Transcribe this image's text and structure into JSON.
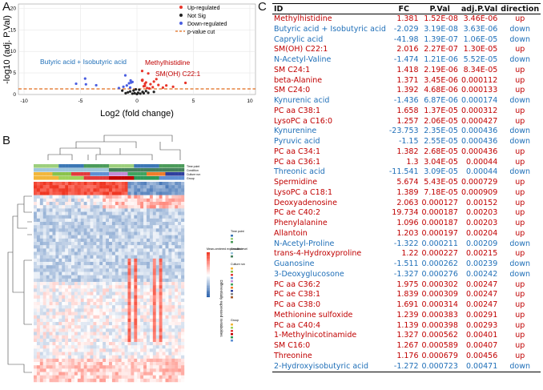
{
  "panels": {
    "a": "A",
    "b": "B",
    "c": "C"
  },
  "volcano": {
    "ylabel": "-log10 (adj. P.Val)",
    "xlabel": "Log2 (fold change)",
    "xticks": [
      "-10",
      "-5",
      "0",
      "5",
      "10"
    ],
    "yticks": [
      "0",
      "5",
      "10",
      "15",
      "20"
    ],
    "legend": {
      "up": "Up-regulated",
      "notsig": "Not Sig",
      "down": "Down-regulated",
      "cut": "p-value cut"
    },
    "annotations": {
      "butyric": "Butyric acid + Isobutyric acid",
      "methyl": "Methylhistidine",
      "smoh": "SM(OH) C22:1"
    },
    "colors": {
      "up": "#e8352a",
      "down": "#4a5ee0",
      "notsig": "#222222",
      "cut": "#e06a1a"
    }
  },
  "chart_data": {
    "type": "scatter",
    "title": "",
    "xlabel": "Log2 (fold change)",
    "ylabel": "-log10 (adj. P.Val)",
    "xlim": [
      -10.5,
      10.5
    ],
    "ylim": [
      0,
      21
    ],
    "threshold": 1.3,
    "series": [
      {
        "name": "Up-regulated",
        "points": [
          [
            0.46,
            5.46
          ],
          [
            1.0,
            4.89
          ],
          [
            1.72,
            3.57
          ],
          [
            0.49,
            3.39
          ],
          [
            0.45,
            3.32
          ],
          [
            0.48,
            3.2
          ],
          [
            0.71,
            2.5
          ],
          [
            1.9,
            2.2
          ],
          [
            1.5,
            3.0
          ],
          [
            0.8,
            2.8
          ],
          [
            1.2,
            2.4
          ],
          [
            0.6,
            1.9
          ],
          [
            1.4,
            1.7
          ],
          [
            2.3,
            1.6
          ],
          [
            0.9,
            1.5
          ],
          [
            3.2,
            1.8
          ],
          [
            4.3,
            2.7
          ],
          [
            0.7,
            2.0
          ],
          [
            1.1,
            1.4
          ],
          [
            2.6,
            2.1
          ]
        ]
      },
      {
        "name": "Not Sig",
        "points": [
          [
            -0.3,
            0.9
          ],
          [
            0.2,
            1.1
          ],
          [
            -0.6,
            0.7
          ],
          [
            0.5,
            0.6
          ],
          [
            0.1,
            0.4
          ],
          [
            -0.2,
            0.3
          ],
          [
            0.3,
            0.2
          ],
          [
            -0.8,
            0.5
          ],
          [
            0.8,
            0.8
          ],
          [
            -0.1,
            1.2
          ],
          [
            0.6,
            0.3
          ],
          [
            -0.4,
            0.2
          ],
          [
            0.0,
            0.1
          ],
          [
            1.0,
            0.4
          ],
          [
            -1.0,
            0.3
          ],
          [
            -1.3,
            0.9
          ],
          [
            1.5,
            0.6
          ]
        ]
      },
      {
        "name": "Down-regulated",
        "points": [
          [
            -1.03,
            4.44
          ],
          [
            -4.59,
            3.69
          ],
          [
            -5.39,
            2.5
          ],
          [
            -0.56,
            3.26
          ],
          [
            -0.52,
            2.76
          ],
          [
            -4.52,
            2.36
          ],
          [
            -3.61,
            2.15
          ],
          [
            -0.4,
            2.9
          ],
          [
            -0.7,
            2.6
          ],
          [
            -0.9,
            2.1
          ],
          [
            -1.2,
            1.8
          ],
          [
            -0.6,
            1.6
          ],
          [
            -1.6,
            1.5
          ]
        ]
      }
    ]
  },
  "heatmap": {
    "legend_title_1": "Mean-centered expression level",
    "legend_title_2": "Time point",
    "legend_title_3": "Condition",
    "legend_title_4": "Culture run",
    "legend_title_5": "Group",
    "row_label": "Differentially expressed metabolites",
    "annotation_labels": [
      "Time point",
      "Condition",
      "Culture run",
      "Group"
    ]
  },
  "table": {
    "headers": {
      "id": "ID",
      "fc": "FC",
      "pval": "P.Val",
      "adj": "adj.P.Val",
      "dir": "direction"
    },
    "rows": [
      {
        "id": "Methylhistidine",
        "fc": "1.381",
        "p": "1.52E-08",
        "adj": "3.46E-06",
        "dir": "up"
      },
      {
        "id": "Butyric acid + Isobutyric acid",
        "fc": "-2.029",
        "p": "3.19E-08",
        "adj": "3.63E-06",
        "dir": "down"
      },
      {
        "id": "Caprylic acid",
        "fc": "-41.98",
        "p": "1.39E-07",
        "adj": "1.06E-05",
        "dir": "down"
      },
      {
        "id": "SM(OH) C22:1",
        "fc": "2.016",
        "p": "2.27E-07",
        "adj": "1.30E-05",
        "dir": "up"
      },
      {
        "id": "N-Acetyl-Valine",
        "fc": "-1.474",
        "p": "1.21E-06",
        "adj": "5.52E-05",
        "dir": "down"
      },
      {
        "id": "SM C24:1",
        "fc": "1.418",
        "p": "2.19E-06",
        "adj": "8.34E-05",
        "dir": "up"
      },
      {
        "id": "beta-Alanine",
        "fc": "1.371",
        "p": "3.45E-06",
        "adj": "0.000112",
        "dir": "up"
      },
      {
        "id": "SM C24:0",
        "fc": "1.392",
        "p": "4.68E-06",
        "adj": "0.000133",
        "dir": "up"
      },
      {
        "id": "Kynurenic acid",
        "fc": "-1.436",
        "p": "6.87E-06",
        "adj": "0.000174",
        "dir": "down"
      },
      {
        "id": "PC aa C38:1",
        "fc": "1.658",
        "p": "1.37E-05",
        "adj": "0.000312",
        "dir": "up"
      },
      {
        "id": "LysoPC a C16:0",
        "fc": "1.257",
        "p": "2.06E-05",
        "adj": "0.000427",
        "dir": "up"
      },
      {
        "id": "Kynurenine",
        "fc": "-23.753",
        "p": "2.35E-05",
        "adj": "0.000436",
        "dir": "down"
      },
      {
        "id": "Pyruvic acid",
        "fc": "-1.15",
        "p": "2.55E-05",
        "adj": "0.000436",
        "dir": "down"
      },
      {
        "id": "PC aa C34:1",
        "fc": "1.382",
        "p": "2.68E-05",
        "adj": "0.000436",
        "dir": "up"
      },
      {
        "id": "PC aa C36:1",
        "fc": "1.3",
        "p": "3.04E-05",
        "adj": "0.00044",
        "dir": "up"
      },
      {
        "id": "Threonic acid",
        "fc": "-11.541",
        "p": "3.09E-05",
        "adj": "0.00044",
        "dir": "down"
      },
      {
        "id": "Spermidine",
        "fc": "5.674",
        "p": "5.43E-05",
        "adj": "0.000729",
        "dir": "up"
      },
      {
        "id": "LysoPC a C18:1",
        "fc": "1.389",
        "p": "7.18E-05",
        "adj": "0.000909",
        "dir": "up"
      },
      {
        "id": "Deoxyadenosine",
        "fc": "2.063",
        "p": "0.000127",
        "adj": "0.00152",
        "dir": "up"
      },
      {
        "id": "PC ae C40:2",
        "fc": "19.734",
        "p": "0.000187",
        "adj": "0.00203",
        "dir": "up"
      },
      {
        "id": "Phenylalanine",
        "fc": "1.096",
        "p": "0.000187",
        "adj": "0.00203",
        "dir": "up"
      },
      {
        "id": "Allantoin",
        "fc": "1.203",
        "p": "0.000197",
        "adj": "0.00204",
        "dir": "up"
      },
      {
        "id": "N-Acetyl-Proline",
        "fc": "-1.322",
        "p": "0.000211",
        "adj": "0.00209",
        "dir": "down"
      },
      {
        "id": "trans-4-Hydroxyproline",
        "fc": "1.22",
        "p": "0.000227",
        "adj": "0.00215",
        "dir": "up"
      },
      {
        "id": "Guanosine",
        "fc": "-1.511",
        "p": "0.000262",
        "adj": "0.00239",
        "dir": "down"
      },
      {
        "id": "3-Deoxyglucosone",
        "fc": "-1.327",
        "p": "0.000276",
        "adj": "0.00242",
        "dir": "down"
      },
      {
        "id": "PC aa C36:2",
        "fc": "1.975",
        "p": "0.000302",
        "adj": "0.00247",
        "dir": "up"
      },
      {
        "id": "PC ae C38:1",
        "fc": "1.839",
        "p": "0.000309",
        "adj": "0.00247",
        "dir": "up"
      },
      {
        "id": "PC aa C38:0",
        "fc": "1.691",
        "p": "0.000314",
        "adj": "0.00247",
        "dir": "up"
      },
      {
        "id": "Methionine sulfoxide",
        "fc": "1.239",
        "p": "0.000383",
        "adj": "0.00291",
        "dir": "up"
      },
      {
        "id": "PC aa C40:4",
        "fc": "1.139",
        "p": "0.000398",
        "adj": "0.00293",
        "dir": "up"
      },
      {
        "id": "1-Methylnicotinamide",
        "fc": "1.327",
        "p": "0.000562",
        "adj": "0.00401",
        "dir": "up"
      },
      {
        "id": "SM C16:0",
        "fc": "1.267",
        "p": "0.000589",
        "adj": "0.00407",
        "dir": "up"
      },
      {
        "id": "Threonine",
        "fc": "1.176",
        "p": "0.000679",
        "adj": "0.00456",
        "dir": "up"
      },
      {
        "id": "2-Hydroxyisobutyric acid",
        "fc": "-1.272",
        "p": "0.000723",
        "adj": "0.00471",
        "dir": "down"
      }
    ]
  }
}
